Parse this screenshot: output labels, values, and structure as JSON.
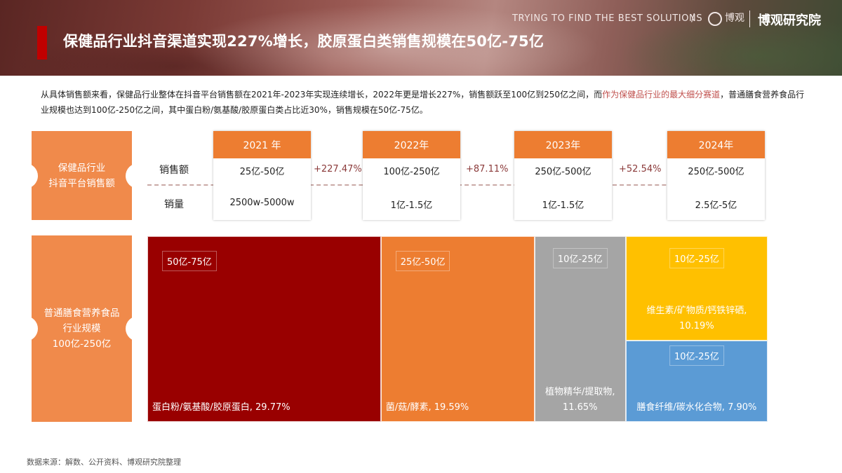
{
  "header": {
    "title": "保健品行业抖音渠道实现227%增长，胶原蛋白类销售规模在50亿-75亿",
    "tagline": "TRYING TO FIND THE BEST SOLUTIONS",
    "slash": "/",
    "logo_glyph": "博观",
    "brand": "博观研究院"
  },
  "intro": {
    "part1": "从具体销售额来看，保健品行业整体在抖音平台销售额在2021年-2023年实现连续增长，2022年更是增长227%，销售额跃至100亿到250亿之间，而",
    "highlight": "作为保健品行业的最大细分赛道",
    "part2": "，普通膳食营养食品行业规模也达到100亿-250亿之间，其中蛋白粉/氨基酸/胶原蛋白类占比近30%，销售规模在50亿-75亿。"
  },
  "chart_data": [
    {
      "type": "table",
      "row_header": "保健品行业抖音平台销售额",
      "row_labels": [
        "销售额",
        "销量"
      ],
      "columns": [
        {
          "year": "2021 年",
          "sales": "25亿-50亿",
          "volume": "2500w-5000w"
        },
        {
          "year": "2022年",
          "sales": "100亿-250亿",
          "volume": "1亿-1.5亿"
        },
        {
          "year": "2023年",
          "sales": "250亿-500亿",
          "volume": "1亿-1.5亿"
        },
        {
          "year": "2024年",
          "sales": "250亿-500亿",
          "volume": "2.5亿-5亿"
        }
      ],
      "growth": [
        "+227.47%",
        "+87.11%",
        "+52.54%"
      ]
    },
    {
      "type": "treemap",
      "row_header_lines": [
        "普通膳食营养食品",
        "行业规模",
        "100亿-250亿"
      ],
      "items": [
        {
          "label": "蛋白粉/氨基酸/胶原蛋白, 29.77%",
          "share": 29.77,
          "range": "50亿-75亿",
          "color": "#990000"
        },
        {
          "label": "菌/菇/酵素, 19.59%",
          "share": 19.59,
          "range": "25亿-50亿",
          "color": "#ed7d31"
        },
        {
          "label_line1": "植物精华/提取物,",
          "label_line2": "11.65%",
          "share": 11.65,
          "range": "10亿-25亿",
          "color": "#a5a5a5"
        },
        {
          "label_line1": "维生素/矿物质/钙铁锌硒,",
          "label_line2": "10.19%",
          "share": 10.19,
          "range": "10亿-25亿",
          "color": "#ffc000"
        },
        {
          "label": "膳食纤维/碳水化合物, 7.90%",
          "share": 7.9,
          "range": "10亿-25亿",
          "color": "#5b9bd5"
        }
      ]
    }
  ],
  "footer": {
    "source": "数据来源：解数、公开资料、博观研究院整理"
  }
}
